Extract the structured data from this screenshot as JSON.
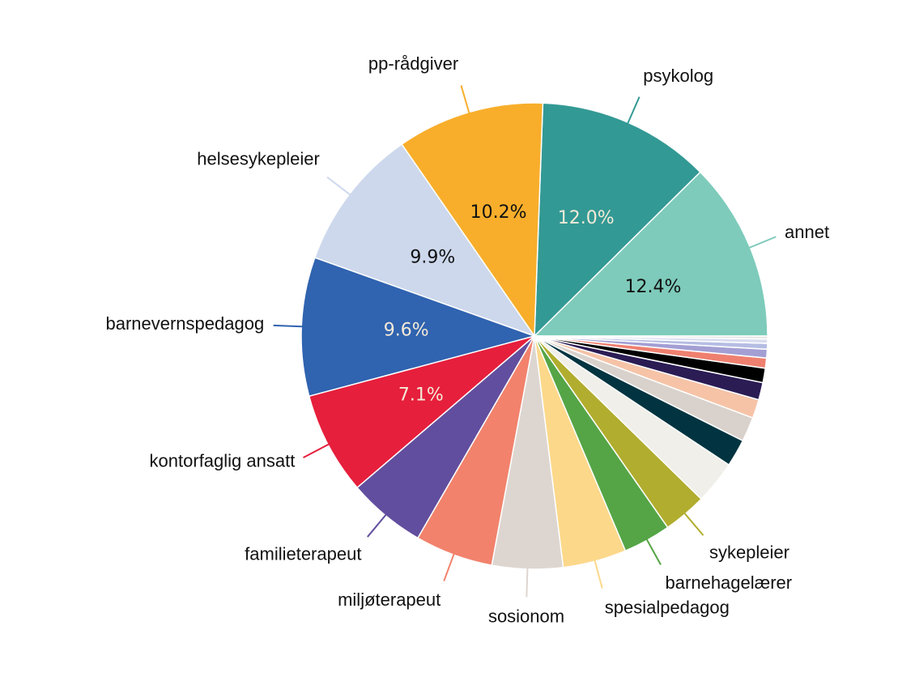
{
  "chart_data": {
    "type": "pie",
    "categories": [
      "annet",
      "psykolog",
      "pp-rådgiver",
      "helsesykepleier",
      "barnevernspedagog",
      "kontorfaglig ansatt",
      "familieterapeut",
      "miljøterapeut",
      "sosionom",
      "spesialpedagog",
      "barnehagelærer",
      "sykepleier",
      null,
      null,
      null,
      null,
      null,
      null,
      null,
      null,
      null,
      null,
      null
    ],
    "values": [
      12.4,
      12.0,
      10.2,
      9.9,
      9.6,
      7.1,
      5.4,
      5.4,
      4.9,
      4.4,
      3.3,
      3.0,
      3.0,
      1.9,
      1.7,
      1.3,
      1.2,
      1.0,
      0.7,
      0.6,
      0.4,
      0.3,
      0.2
    ],
    "value_labels": [
      "12.4%",
      "12.0%",
      "10.2%",
      "9.9%",
      "9.6%",
      "7.1%",
      null,
      null,
      null,
      null,
      null,
      null,
      null,
      null,
      null,
      null,
      null,
      null,
      null,
      null,
      null,
      null,
      null
    ],
    "colors": [
      "#7ecbbb",
      "#339994",
      "#f8ae2b",
      "#cdd8ec",
      "#3063b0",
      "#e61f3c",
      "#624e9e",
      "#f2826c",
      "#ddd6d0",
      "#fcd88a",
      "#55a546",
      "#b1ad2e",
      "#f0efea",
      "#013440",
      "#d9d2cc",
      "#f6c3a7",
      "#2b1c54",
      "#000000",
      "#ef8070",
      "#a39fd4",
      "#b5bde3",
      "#d8dcef",
      "#e4e4e4"
    ]
  }
}
